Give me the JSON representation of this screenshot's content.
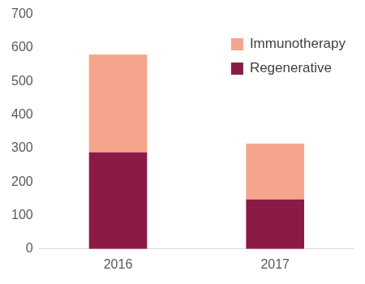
{
  "chart_data": {
    "type": "bar",
    "stacked": true,
    "categories": [
      "2016",
      "2017"
    ],
    "series": [
      {
        "name": "Regenerative",
        "color": "#8c1a47",
        "values": [
          288,
          148
        ]
      },
      {
        "name": "Immunotherapy",
        "color": "#f5a58c",
        "values": [
          292,
          166
        ]
      }
    ],
    "ylim": [
      0,
      700
    ],
    "yticks": [
      0,
      100,
      200,
      300,
      400,
      500,
      600,
      700
    ],
    "grid": false,
    "legend": "top-right"
  }
}
